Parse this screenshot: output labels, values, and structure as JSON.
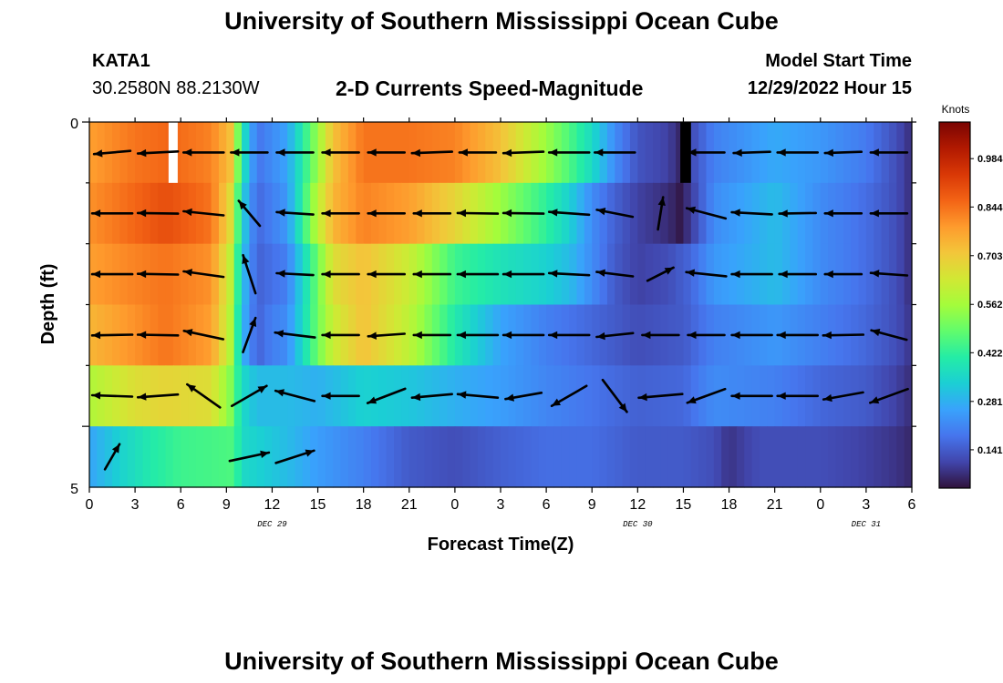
{
  "header": {
    "title": "University of Southern Mississippi Ocean Cube",
    "station": "KATA1",
    "coords": "30.2580N  88.2130W",
    "subtitle": "2-D Currents Speed-Magnitude",
    "model_start_label": "Model Start Time",
    "model_start_value": "12/29/2022 Hour 15"
  },
  "footer": {
    "title": "University of Southern Mississippi Ocean Cube"
  },
  "colors": {
    "palette": [
      "#30123b",
      "#4145ab",
      "#4675ed",
      "#39a2fc",
      "#1bcfd4",
      "#24eca6",
      "#61fc6c",
      "#a4fc3b",
      "#d1e834",
      "#f3c63a",
      "#fe9b2d",
      "#f36315",
      "#d93806",
      "#b11901",
      "#7a0402"
    ],
    "arrow": "#000000",
    "gap_white": "#ffffff",
    "gap_black": "#000000"
  },
  "chart_data": {
    "type": "heatmap",
    "variable": "current speed magnitude with direction vectors",
    "colorbar": {
      "label": "Knots",
      "ticks": [
        0.141,
        0.281,
        0.422,
        0.562,
        0.703,
        0.844,
        0.984
      ],
      "range": [
        0.03,
        1.09
      ]
    },
    "x": {
      "label": "Forecast Time(Z)",
      "range": [
        0,
        54
      ],
      "tick_labels": [
        "0",
        "3",
        "6",
        "9",
        "12",
        "15",
        "18",
        "21",
        "0",
        "3",
        "6",
        "9",
        "12",
        "15",
        "18",
        "21",
        "0",
        "3",
        "6"
      ],
      "tick_hours": [
        0,
        3,
        6,
        9,
        12,
        15,
        18,
        21,
        24,
        27,
        30,
        33,
        36,
        39,
        42,
        45,
        48,
        51,
        54
      ],
      "date_labels": [
        {
          "text": "DEC 29",
          "hour": 12
        },
        {
          "text": "DEC 30",
          "hour": 36
        },
        {
          "text": "DEC 31",
          "hour": 51
        }
      ]
    },
    "y": {
      "label": "Depth (ft)",
      "range": [
        0,
        5
      ],
      "tick_labels": [
        "0",
        "5"
      ],
      "layers": [
        0,
        1,
        2,
        3,
        4,
        5
      ]
    },
    "speed_profiles": [
      [
        [
          0,
          0.78
        ],
        [
          3,
          0.84
        ],
        [
          5.3,
          0.86
        ],
        [
          8,
          0.82
        ],
        [
          9.3,
          0.72
        ],
        [
          10,
          0.4
        ],
        [
          11,
          0.18
        ],
        [
          13,
          0.26
        ],
        [
          15,
          0.55
        ],
        [
          16,
          0.72
        ],
        [
          18,
          0.84
        ],
        [
          21,
          0.84
        ],
        [
          24,
          0.82
        ],
        [
          27,
          0.72
        ],
        [
          30,
          0.55
        ],
        [
          31.5,
          0.46
        ],
        [
          33,
          0.36
        ],
        [
          34.5,
          0.22
        ],
        [
          36,
          0.13
        ],
        [
          38,
          0.1
        ],
        [
          38.8,
          0.06
        ],
        [
          39.6,
          0.12
        ],
        [
          41,
          0.2
        ],
        [
          45,
          0.27
        ],
        [
          48,
          0.24
        ],
        [
          51,
          0.19
        ],
        [
          53,
          0.12
        ],
        [
          54,
          0.07
        ]
      ],
      [
        [
          0,
          0.8
        ],
        [
          3,
          0.86
        ],
        [
          5,
          0.9
        ],
        [
          8,
          0.84
        ],
        [
          9.3,
          0.66
        ],
        [
          10,
          0.35
        ],
        [
          11,
          0.16
        ],
        [
          13,
          0.24
        ],
        [
          15,
          0.6
        ],
        [
          16,
          0.74
        ],
        [
          18,
          0.82
        ],
        [
          21,
          0.78
        ],
        [
          24,
          0.68
        ],
        [
          27,
          0.55
        ],
        [
          30,
          0.42
        ],
        [
          31.5,
          0.34
        ],
        [
          33,
          0.22
        ],
        [
          34.5,
          0.15
        ],
        [
          36,
          0.1
        ],
        [
          38,
          0.07
        ],
        [
          38.8,
          0.04
        ],
        [
          39.6,
          0.1
        ],
        [
          41,
          0.22
        ],
        [
          45,
          0.3
        ],
        [
          48,
          0.22
        ],
        [
          51,
          0.17
        ],
        [
          53,
          0.12
        ],
        [
          54,
          0.07
        ]
      ],
      [
        [
          0,
          0.78
        ],
        [
          3,
          0.82
        ],
        [
          5,
          0.84
        ],
        [
          8,
          0.8
        ],
        [
          9.3,
          0.6
        ],
        [
          10,
          0.32
        ],
        [
          11,
          0.15
        ],
        [
          13,
          0.2
        ],
        [
          15,
          0.5
        ],
        [
          16,
          0.66
        ],
        [
          18,
          0.72
        ],
        [
          21,
          0.62
        ],
        [
          24,
          0.44
        ],
        [
          27,
          0.38
        ],
        [
          30,
          0.34
        ],
        [
          31.5,
          0.3
        ],
        [
          33,
          0.22
        ],
        [
          34.5,
          0.14
        ],
        [
          36,
          0.1
        ],
        [
          38,
          0.12
        ],
        [
          39.5,
          0.16
        ],
        [
          41,
          0.24
        ],
        [
          45,
          0.3
        ],
        [
          48,
          0.22
        ],
        [
          51,
          0.17
        ],
        [
          53,
          0.12
        ],
        [
          54,
          0.07
        ]
      ],
      [
        [
          0,
          0.74
        ],
        [
          3,
          0.8
        ],
        [
          5,
          0.84
        ],
        [
          8,
          0.78
        ],
        [
          9.3,
          0.58
        ],
        [
          10,
          0.3
        ],
        [
          11,
          0.15
        ],
        [
          12,
          0.2
        ],
        [
          13,
          0.22
        ],
        [
          15,
          0.5
        ],
        [
          16,
          0.62
        ],
        [
          18,
          0.72
        ],
        [
          21,
          0.6
        ],
        [
          24,
          0.4
        ],
        [
          27,
          0.26
        ],
        [
          30,
          0.2
        ],
        [
          33,
          0.16
        ],
        [
          36,
          0.12
        ],
        [
          39,
          0.14
        ],
        [
          41,
          0.2
        ],
        [
          45,
          0.24
        ],
        [
          48,
          0.2
        ],
        [
          51,
          0.16
        ],
        [
          53,
          0.12
        ],
        [
          54,
          0.08
        ]
      ],
      [
        [
          0,
          0.58
        ],
        [
          3,
          0.66
        ],
        [
          5,
          0.68
        ],
        [
          8,
          0.66
        ],
        [
          9.3,
          0.52
        ],
        [
          10,
          0.36
        ],
        [
          11,
          0.3
        ],
        [
          13,
          0.3
        ],
        [
          15,
          0.28
        ],
        [
          18,
          0.34
        ],
        [
          21,
          0.32
        ],
        [
          24,
          0.28
        ],
        [
          27,
          0.25
        ],
        [
          30,
          0.21
        ],
        [
          33,
          0.18
        ],
        [
          36,
          0.15
        ],
        [
          39,
          0.16
        ],
        [
          41,
          0.22
        ],
        [
          45,
          0.2
        ],
        [
          48,
          0.16
        ],
        [
          51,
          0.14
        ],
        [
          53,
          0.1
        ],
        [
          54,
          0.07
        ]
      ],
      [
        [
          0,
          0.26
        ],
        [
          2,
          0.34
        ],
        [
          4,
          0.4
        ],
        [
          6,
          0.44
        ],
        [
          8,
          0.45
        ],
        [
          9.5,
          0.46
        ],
        [
          10,
          0.36
        ],
        [
          11,
          0.34
        ],
        [
          13,
          0.3
        ],
        [
          15,
          0.25
        ],
        [
          18,
          0.2
        ],
        [
          21,
          0.14
        ],
        [
          24,
          0.12
        ],
        [
          27,
          0.15
        ],
        [
          30,
          0.17
        ],
        [
          33,
          0.17
        ],
        [
          36,
          0.14
        ],
        [
          39,
          0.14
        ],
        [
          41,
          0.12
        ],
        [
          42,
          0.08
        ],
        [
          44,
          0.12
        ],
        [
          48,
          0.12
        ],
        [
          51,
          0.1
        ],
        [
          53,
          0.08
        ],
        [
          54,
          0.06
        ]
      ]
    ],
    "gaps": [
      {
        "layer": 0,
        "hour_start": 5.2,
        "hour_end": 5.8,
        "fill": "white"
      },
      {
        "layer": 0,
        "hour_start": 38.8,
        "hour_end": 39.5,
        "fill": "black"
      }
    ],
    "vector_hours": [
      1.5,
      4.5,
      7.5,
      10.5,
      13.5,
      16.5,
      19.5,
      22.5,
      25.5,
      28.5,
      31.5,
      34.5,
      37.5,
      40.5,
      43.5,
      46.5,
      49.5,
      52.5
    ],
    "vector_depths": [
      0,
      1,
      2,
      3,
      4,
      5
    ],
    "vectors_dir_deg": [
      [
        185,
        183,
        180,
        180,
        180,
        180,
        180,
        182,
        180,
        182,
        180,
        180,
        null,
        180,
        182,
        180,
        182,
        180
      ],
      [
        180,
        179,
        174,
        130,
        176,
        180,
        180,
        180,
        179,
        179,
        176,
        169,
        81,
        165,
        177,
        181,
        180,
        180
      ],
      [
        180,
        179,
        172,
        108,
        177,
        180,
        180,
        180,
        180,
        180,
        177,
        173,
        27,
        174,
        180,
        180,
        180,
        176
      ],
      [
        181,
        179,
        168,
        70,
        173,
        180,
        184,
        180,
        180,
        180,
        180,
        186,
        180,
        180,
        180,
        180,
        181,
        165
      ],
      [
        178,
        184,
        145,
        30,
        165,
        180,
        201,
        185,
        175,
        190,
        210,
        307,
        185,
        200,
        180,
        180,
        190,
        200
      ],
      [
        60,
        null,
        null,
        12,
        18,
        null,
        null,
        null,
        null,
        null,
        null,
        null,
        null,
        null,
        null,
        null,
        null,
        null
      ]
    ],
    "vectors_len": [
      [
        0.5,
        0.55,
        0.55,
        0.5,
        0.5,
        0.5,
        0.5,
        0.55,
        0.5,
        0.55,
        0.55,
        0.55,
        0,
        0.5,
        0.5,
        0.55,
        0.5,
        0.5
      ],
      [
        0.55,
        0.55,
        0.55,
        0.45,
        0.5,
        0.5,
        0.5,
        0.5,
        0.55,
        0.55,
        0.55,
        0.5,
        0.45,
        0.55,
        0.55,
        0.5,
        0.5,
        0.5
      ],
      [
        0.55,
        0.55,
        0.55,
        0.55,
        0.5,
        0.5,
        0.5,
        0.5,
        0.55,
        0.55,
        0.55,
        0.5,
        0.4,
        0.55,
        0.55,
        0.5,
        0.5,
        0.5
      ],
      [
        0.55,
        0.55,
        0.55,
        0.5,
        0.55,
        0.5,
        0.5,
        0.5,
        0.55,
        0.55,
        0.55,
        0.5,
        0.5,
        0.5,
        0.55,
        0.55,
        0.55,
        0.5
      ],
      [
        0.55,
        0.55,
        0.55,
        0.55,
        0.55,
        0.5,
        0.55,
        0.55,
        0.55,
        0.5,
        0.55,
        0.55,
        0.6,
        0.55,
        0.55,
        0.55,
        0.55,
        0.55
      ],
      [
        0.4,
        0,
        0,
        0.55,
        0.55,
        0,
        0,
        0,
        0,
        0,
        0,
        0,
        0,
        0,
        0,
        0,
        0,
        0
      ]
    ]
  }
}
